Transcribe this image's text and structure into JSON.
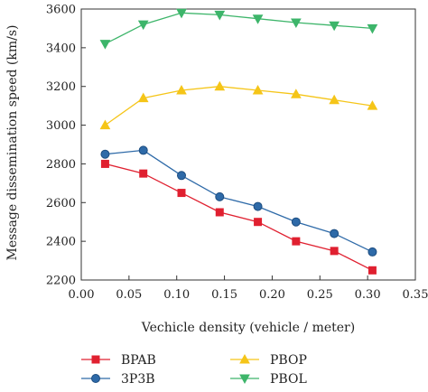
{
  "chart_data": {
    "type": "line",
    "title": "",
    "xlabel": "Vechicle density (vehicle / meter)",
    "ylabel": "Message dissemination speed (km/s)",
    "xlim": [
      0.0,
      0.35
    ],
    "ylim": [
      2200,
      3600
    ],
    "xticks": [
      "0.00",
      "0.05",
      "0.10",
      "0.15",
      "0.20",
      "0.25",
      "0.30",
      "0.35"
    ],
    "yticks": [
      "2200",
      "2400",
      "2600",
      "2800",
      "3000",
      "3200",
      "3400",
      "3600"
    ],
    "grid": false,
    "legend_position": "bottom",
    "x": [
      0.025,
      0.065,
      0.105,
      0.145,
      0.185,
      0.225,
      0.265,
      0.305
    ],
    "series": [
      {
        "name": "BPAB",
        "color": "#e02030",
        "marker": "square",
        "values": [
          2800,
          2750,
          2650,
          2550,
          2500,
          2400,
          2350,
          2250
        ]
      },
      {
        "name": "3P3B",
        "color": "#2e6aa8",
        "marker": "circle",
        "values": [
          2850,
          2870,
          2740,
          2630,
          2580,
          2500,
          2440,
          2345
        ]
      },
      {
        "name": "PBOP",
        "color": "#f5c518",
        "marker": "triangle-up",
        "values": [
          3000,
          3140,
          3180,
          3200,
          3180,
          3160,
          3130,
          3100
        ]
      },
      {
        "name": "PBOL",
        "color": "#3db56a",
        "marker": "triangle-down",
        "values": [
          3420,
          3520,
          3580,
          3570,
          3550,
          3530,
          3515,
          3500
        ]
      }
    ]
  }
}
